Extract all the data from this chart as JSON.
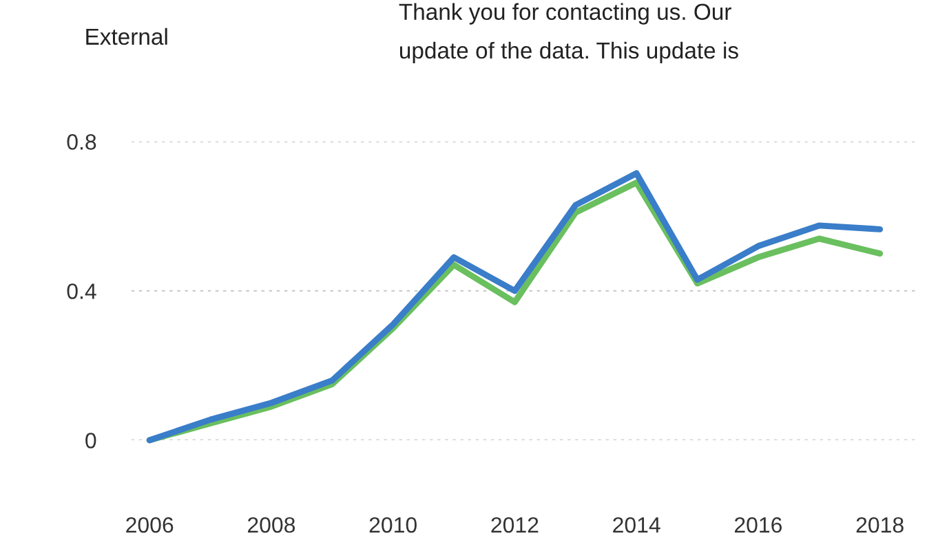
{
  "chart_data": {
    "type": "line",
    "title": "External",
    "annotations": [
      "Thank you for contacting us. Our",
      "update of the data. This update is"
    ],
    "x": [
      2006,
      2007,
      2008,
      2009,
      2010,
      2011,
      2012,
      2013,
      2014,
      2015,
      2016,
      2017,
      2018
    ],
    "series": [
      {
        "color": "#6abf5e",
        "values": [
          0,
          0.045,
          0.09,
          0.15,
          0.3,
          0.47,
          0.37,
          0.61,
          0.69,
          0.42,
          0.49,
          0.54,
          0.5
        ]
      },
      {
        "color": "#3a7dc9",
        "values": [
          0,
          0.055,
          0.1,
          0.16,
          0.31,
          0.49,
          0.4,
          0.63,
          0.715,
          0.43,
          0.52,
          0.575,
          0.565
        ]
      }
    ],
    "xlim": [
      2005.7,
      2018.6
    ],
    "xticks": [
      2006,
      2008,
      2010,
      2012,
      2014,
      2016,
      2018
    ],
    "ylim": [
      0,
      0.8
    ],
    "yticks": [
      0,
      0.4,
      0.8
    ],
    "grid": "y",
    "marker": "none",
    "line_style": "solid"
  }
}
